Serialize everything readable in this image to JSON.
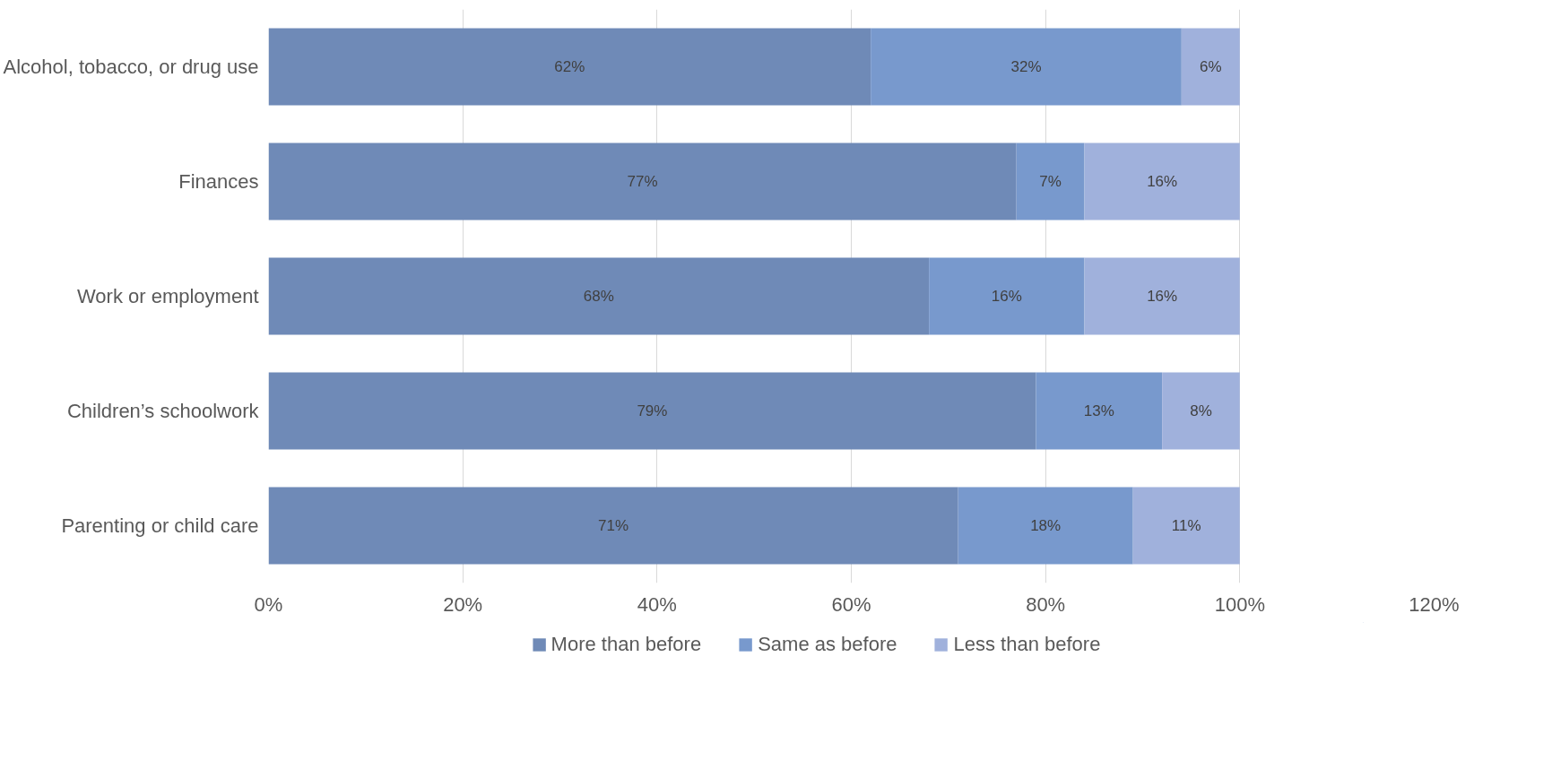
{
  "chart_data": {
    "type": "bar",
    "orientation": "horizontal",
    "stacked": true,
    "grid": "x",
    "legend": "bottom",
    "categories": [
      "Alcohol, tobacco, or drug use",
      "Finances",
      "Work or employment",
      "Children’s schoolwork",
      "Parenting or child care"
    ],
    "series": [
      {
        "name": "More than before",
        "color": "#6f8ab7",
        "values": [
          62,
          77,
          68,
          79,
          71
        ],
        "value_labels": [
          "62%",
          "77%",
          "68%",
          "79%",
          "71%"
        ]
      },
      {
        "name": "Same as before",
        "color": "#7899cd",
        "values": [
          32,
          7,
          16,
          13,
          18
        ],
        "value_labels": [
          "32%",
          "7%",
          "16%",
          "13%",
          "18%"
        ]
      },
      {
        "name": "Less than before",
        "color": "#a0b1dc",
        "values": [
          6,
          16,
          16,
          8,
          11
        ],
        "value_labels": [
          "6%",
          "16%",
          "16%",
          "8%",
          "11%"
        ]
      }
    ],
    "xlim": [
      0,
      120
    ],
    "xticks": [
      {
        "value": 0,
        "label": "0%"
      },
      {
        "value": 20,
        "label": "20%"
      },
      {
        "value": 40,
        "label": "40%"
      },
      {
        "value": 60,
        "label": "60%"
      },
      {
        "value": 80,
        "label": "80%"
      },
      {
        "value": 100,
        "label": "100%"
      },
      {
        "value": 120,
        "label": "120%"
      }
    ]
  }
}
